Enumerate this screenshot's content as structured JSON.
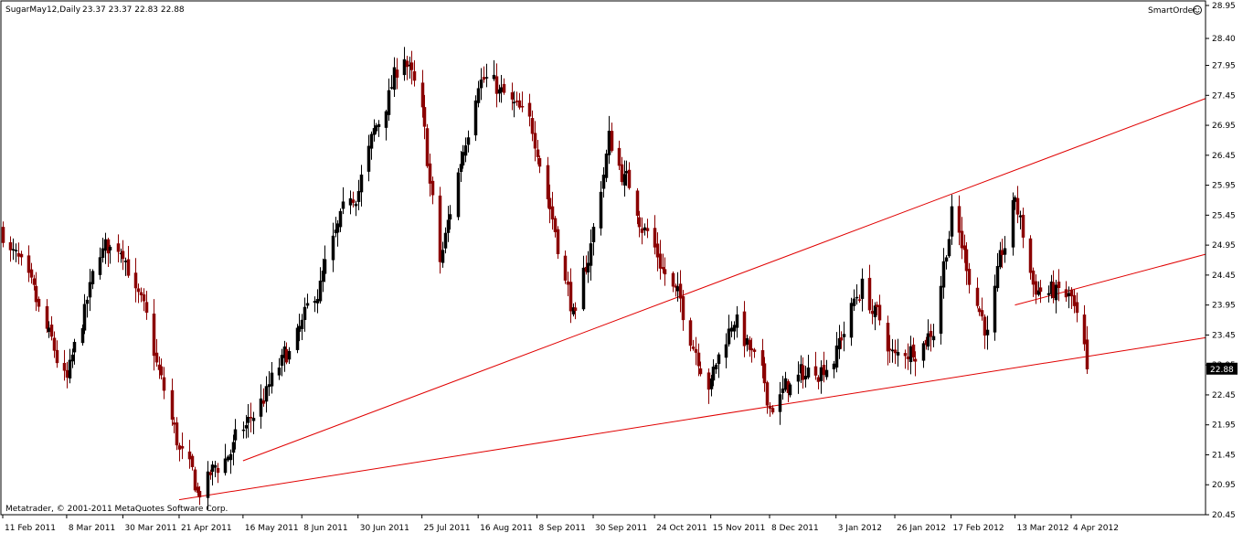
{
  "header": {
    "symbol": "SugarMay12,Daily",
    "ohlc": "23.37 23.37 22.83 22.88",
    "smartorder": "SmartOrder"
  },
  "footer": {
    "copyright": "Metatrader, © 2001-2011 MetaQuotes Software Corp."
  },
  "colors": {
    "background": "#ffffff",
    "frame": "#000000",
    "bull": "#000000",
    "bear": "#8b0000",
    "trendline": "#e00000",
    "price_label_bg": "#000000"
  },
  "chart_data": {
    "type": "candlestick",
    "title": "SugarMay12,Daily",
    "current_price": "22.88",
    "y_range": [
      20.45,
      28.95
    ],
    "y_ticks": [
      "28.95",
      "28.40",
      "27.95",
      "27.45",
      "26.95",
      "26.45",
      "25.95",
      "25.45",
      "24.95",
      "24.45",
      "23.95",
      "23.45",
      "22.95",
      "22.45",
      "21.95",
      "21.45",
      "20.95",
      "20.45"
    ],
    "x_labels": [
      "11 Feb 2011",
      "8 Mar 2011",
      "30 Mar 2011",
      "21 Apr 2011",
      "16 May 2011",
      "8 Jun 2011",
      "30 Jun 2011",
      "25 Jul 2011",
      "16 Aug 2011",
      "8 Sep 2011",
      "30 Sep 2011",
      "24 Oct 2011",
      "15 Nov 2011",
      "8 Dec 2011",
      "3 Jan 2012",
      "26 Jan 2012",
      "17 Feb 2012",
      "13 Mar 2012",
      "4 Apr 2012"
    ],
    "trendlines": [
      {
        "from": {
          "date": "21 Apr 2011",
          "price": 20.7
        },
        "to": {
          "date": "4 Apr 2012",
          "price": 23.05
        },
        "extend_right": true
      },
      {
        "from": {
          "date": "16 May 2011",
          "price": 21.35
        },
        "to": {
          "date": "13 Mar 2012",
          "price": 26.2
        },
        "extend_right": true
      },
      {
        "from": {
          "date": "13 Mar 2012",
          "price": 23.95
        },
        "to": {
          "date": "4 Apr 2012",
          "price": 24.2
        },
        "extend_right": true
      }
    ],
    "anchors": [
      [
        "11 Feb 2011",
        25.2
      ],
      [
        "8 Mar 2011",
        22.6
      ],
      [
        "21 Mar 2011",
        24.8
      ],
      [
        "30 Mar 2011",
        25.0
      ],
      [
        "21 Apr 2011",
        21.5
      ],
      [
        "28 Apr 2011",
        20.8
      ],
      [
        "16 May 2011",
        21.8
      ],
      [
        "8 Jun 2011",
        23.5
      ],
      [
        "30 Jun 2011",
        26.0
      ],
      [
        "18 Jul 2011",
        28.2
      ],
      [
        "25 Jul 2011",
        27.0
      ],
      [
        "1 Aug 2011",
        24.6
      ],
      [
        "16 Aug 2011",
        27.9
      ],
      [
        "8 Sep 2011",
        26.7
      ],
      [
        "23 Sep 2011",
        23.6
      ],
      [
        "30 Sep 2011",
        25.2
      ],
      [
        "6 Oct 2011",
        26.7
      ],
      [
        "24 Oct 2011",
        24.9
      ],
      [
        "15 Nov 2011",
        22.7
      ],
      [
        "24 Nov 2011",
        23.8
      ],
      [
        "8 Dec 2011",
        22.3
      ],
      [
        "3 Jan 2012",
        23.2
      ],
      [
        "13 Jan 2012",
        24.3
      ],
      [
        "26 Jan 2012",
        23.0
      ],
      [
        "10 Feb 2012",
        23.6
      ],
      [
        "17 Feb 2012",
        25.5
      ],
      [
        "2 Mar 2012",
        23.5
      ],
      [
        "13 Mar 2012",
        25.7
      ],
      [
        "20 Mar 2012",
        24.3
      ],
      [
        "4 Apr 2012",
        24.0
      ],
      [
        "10 Apr 2012",
        22.88
      ]
    ]
  }
}
